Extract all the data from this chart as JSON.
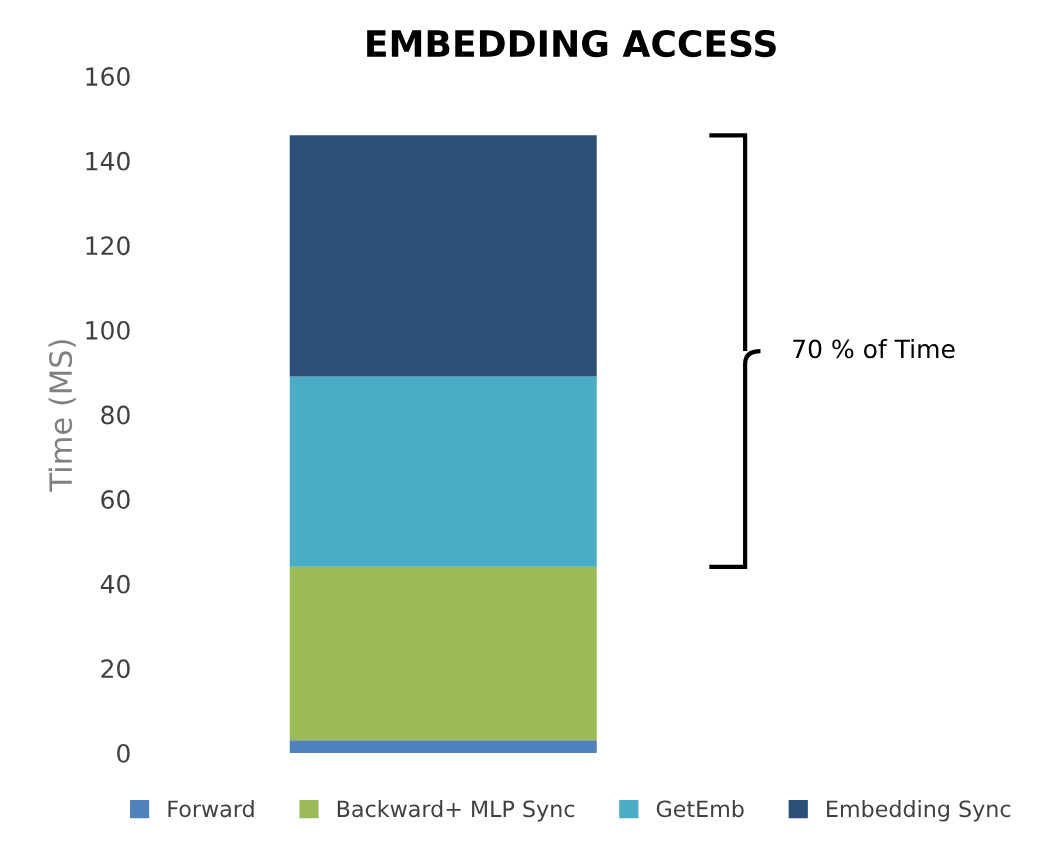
{
  "chart_data": {
    "type": "bar",
    "title": "EMBEDDING ACCESS",
    "ylabel": "Time (MS)",
    "categories": [
      null
    ],
    "stacked": true,
    "series": [
      {
        "name": "Forward",
        "color": "#4f81bd",
        "values": [
          3
        ]
      },
      {
        "name": "Backward+ MLP Sync",
        "color": "#9bbb59",
        "values": [
          41
        ]
      },
      {
        "name": "GetEmb",
        "color": "#4bacc6",
        "values": [
          45
        ]
      },
      {
        "name": "Embedding Sync",
        "color": "#2c4f77",
        "values": [
          57
        ]
      }
    ],
    "ylim": [
      0,
      160
    ],
    "yticks": [
      0,
      20,
      40,
      60,
      80,
      100,
      120,
      140,
      160
    ],
    "grid": false,
    "legend": "bottom",
    "annotations": [
      "70 % of Time"
    ]
  }
}
